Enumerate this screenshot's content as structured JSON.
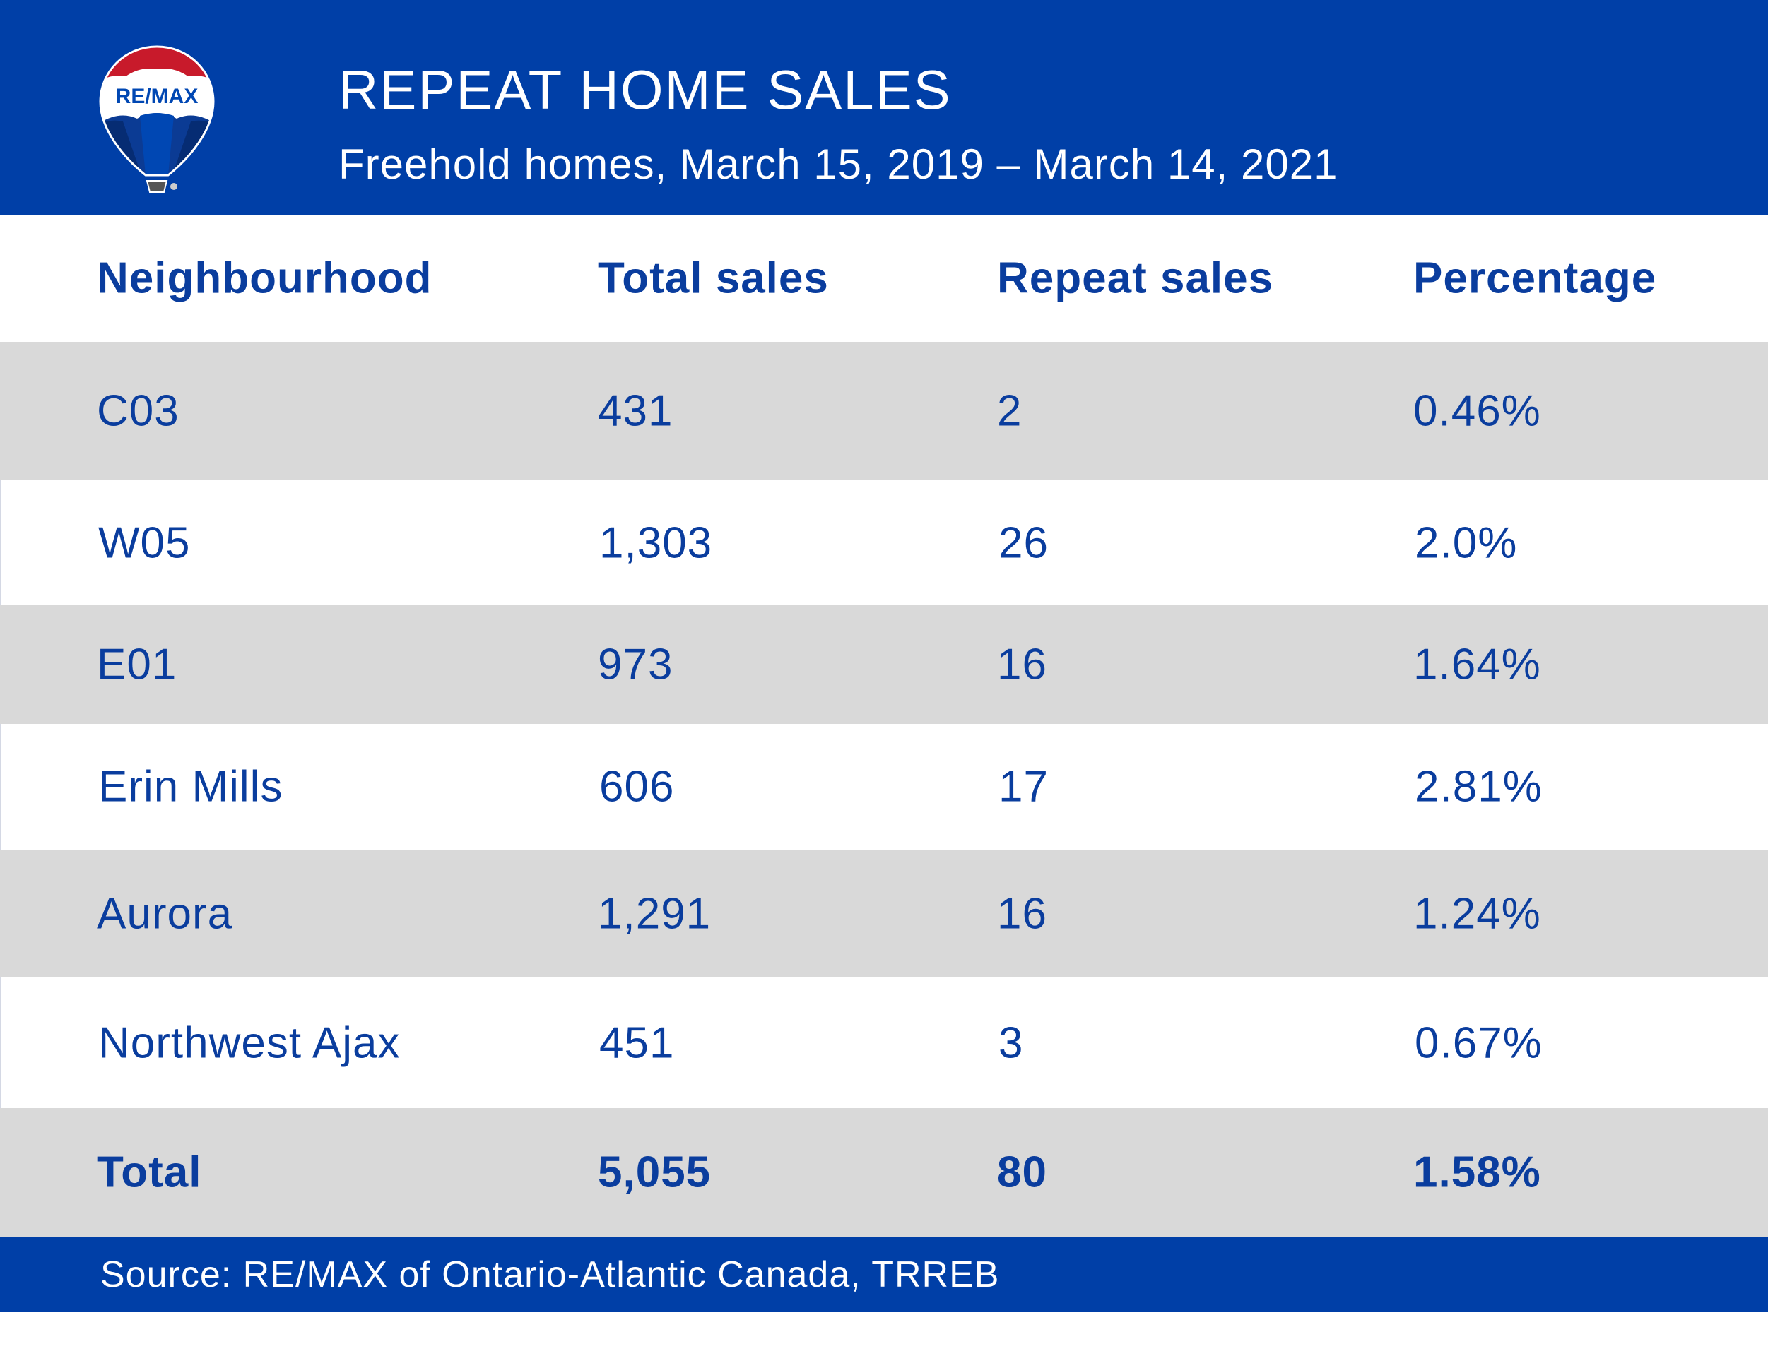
{
  "header": {
    "title": "REPEAT HOME SALES",
    "subtitle": "Freehold homes, March 15, 2019 – March 14, 2021",
    "logo_text": "RE/MAX"
  },
  "colors": {
    "brand_blue": "#003FA7",
    "text_blue": "#0A3D9E",
    "row_gray": "#D9D9D9",
    "brand_red": "#DC1C2E"
  },
  "table": {
    "columns": [
      "Neighbourhood",
      "Total sales",
      "Repeat sales",
      "Percentage"
    ],
    "rows": [
      [
        "C03",
        "431",
        "2",
        "0.46%"
      ],
      [
        "W05",
        "1,303",
        "26",
        "2.0%"
      ],
      [
        "E01",
        "973",
        "16",
        "1.64%"
      ],
      [
        "Erin Mills",
        "606",
        "17",
        "2.81%"
      ],
      [
        "Aurora",
        "1,291",
        "16",
        "1.24%"
      ],
      [
        "Northwest Ajax",
        "451",
        "3",
        "0.67%"
      ]
    ],
    "total": [
      "Total",
      "5,055",
      "80",
      "1.58%"
    ]
  },
  "footer": {
    "source": "Source:  RE/MAX of Ontario-Atlantic Canada, TRREB"
  }
}
